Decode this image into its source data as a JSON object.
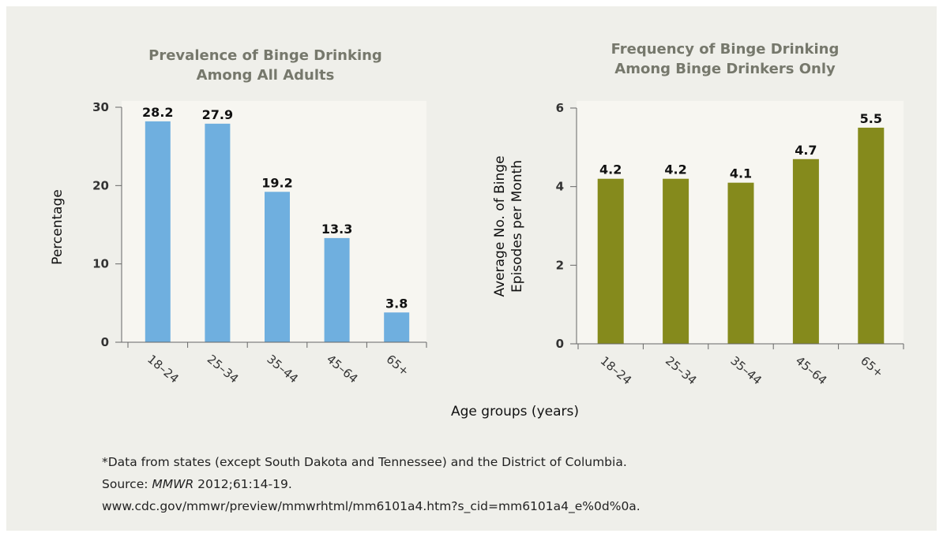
{
  "chart_data": [
    {
      "type": "bar",
      "title_lines": [
        "Prevalence of Binge Drinking",
        "Among All Adults"
      ],
      "categories": [
        "18–24",
        "25–34",
        "35–44",
        "45–64",
        "65+"
      ],
      "values": [
        28.2,
        27.9,
        19.2,
        13.3,
        3.8
      ],
      "data_labels": [
        "28.2",
        "27.9",
        "19.2",
        "13.3",
        "3.8"
      ],
      "ylabel": "Percentage",
      "ylim": [
        0,
        30
      ],
      "yticks": [
        0,
        10,
        20,
        30
      ],
      "grid": false,
      "bar_color": "#6fafdf"
    },
    {
      "type": "bar",
      "title_lines": [
        "Frequency of Binge Drinking",
        "Among Binge Drinkers Only"
      ],
      "categories": [
        "18–24",
        "25–34",
        "35–44",
        "45–64",
        "65+"
      ],
      "values": [
        4.2,
        4.2,
        4.1,
        4.7,
        5.5
      ],
      "data_labels": [
        "4.2",
        "4.2",
        "4.1",
        "4.7",
        "5.5"
      ],
      "ylabel_lines": [
        "Average No. of Binge",
        "Episodes per Month"
      ],
      "ylim": [
        0,
        6
      ],
      "yticks": [
        0,
        2,
        4,
        6
      ],
      "grid": false,
      "bar_color": "#858a1c"
    }
  ],
  "shared_xlabel": "Age groups (years)",
  "footnote": {
    "note": "*Data from states (except South Dakota and Tennessee) and the District of Columbia.",
    "source_prefix": "Source: ",
    "source_journal": "MMWR",
    "source_citation": " 2012;61:14-19.",
    "url": "www.cdc.gov/mmwr/preview/mmwrhtml/mm6101a4.htm?s_cid=mm6101a4_e%0d%0a."
  },
  "colors": {
    "background": "#efefea",
    "plot_area": "#f7f6f1",
    "title_gray": "#76786c"
  }
}
